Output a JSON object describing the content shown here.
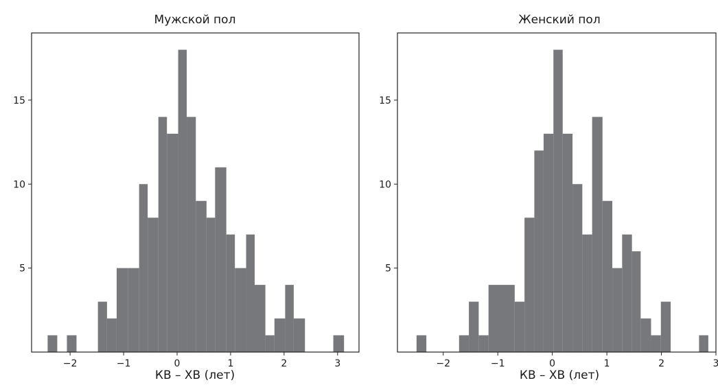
{
  "chart_data": [
    {
      "type": "histogram",
      "title": "Мужской пол",
      "xlabel": "КВ – ХВ (лет)",
      "ylabel": "",
      "xlim": [
        -2.72,
        3.4
      ],
      "ylim": [
        0,
        19
      ],
      "xticks": [
        -2,
        -1,
        0,
        1,
        2,
        3
      ],
      "xtick_labels": [
        "−2",
        "−1",
        "0",
        "1",
        "2",
        "3"
      ],
      "yticks": [
        5,
        10,
        15
      ],
      "ytick_labels": [
        "5",
        "10",
        "15"
      ],
      "color": "#77787b",
      "bins": [
        {
          "x0": -2.42,
          "x1": -2.24,
          "count": 1
        },
        {
          "x0": -2.06,
          "x1": -1.88,
          "count": 1
        },
        {
          "x0": -1.48,
          "x1": -1.31,
          "count": 3
        },
        {
          "x0": -1.31,
          "x1": -1.13,
          "count": 2
        },
        {
          "x0": -1.13,
          "x1": -0.92,
          "count": 5
        },
        {
          "x0": -0.92,
          "x1": -0.71,
          "count": 5
        },
        {
          "x0": -0.71,
          "x1": -0.55,
          "count": 10
        },
        {
          "x0": -0.55,
          "x1": -0.35,
          "count": 8
        },
        {
          "x0": -0.35,
          "x1": -0.19,
          "count": 14
        },
        {
          "x0": -0.19,
          "x1": 0.02,
          "count": 13
        },
        {
          "x0": 0.02,
          "x1": 0.18,
          "count": 18
        },
        {
          "x0": 0.18,
          "x1": 0.35,
          "count": 14
        },
        {
          "x0": 0.35,
          "x1": 0.55,
          "count": 9
        },
        {
          "x0": 0.55,
          "x1": 0.71,
          "count": 8
        },
        {
          "x0": 0.71,
          "x1": 0.92,
          "count": 11
        },
        {
          "x0": 0.92,
          "x1": 1.08,
          "count": 7
        },
        {
          "x0": 1.08,
          "x1": 1.29,
          "count": 5
        },
        {
          "x0": 1.29,
          "x1": 1.45,
          "count": 7
        },
        {
          "x0": 1.45,
          "x1": 1.65,
          "count": 4
        },
        {
          "x0": 1.65,
          "x1": 1.82,
          "count": 1
        },
        {
          "x0": 1.82,
          "x1": 2.02,
          "count": 2
        },
        {
          "x0": 2.02,
          "x1": 2.18,
          "count": 4
        },
        {
          "x0": 2.18,
          "x1": 2.39,
          "count": 2
        },
        {
          "x0": 2.92,
          "x1": 3.12,
          "count": 1
        }
      ]
    },
    {
      "type": "histogram",
      "title": "Женский пол",
      "xlabel": "КВ – ХВ (лет)",
      "ylabel": "",
      "xlim": [
        -2.84,
        3.0
      ],
      "ylim": [
        0,
        19
      ],
      "xticks": [
        -2,
        -1,
        0,
        1,
        2,
        3
      ],
      "xtick_labels": [
        "−2",
        "−1",
        "0",
        "1",
        "2",
        "3"
      ],
      "yticks": [
        5,
        10,
        15
      ],
      "ytick_labels": [
        "5",
        "10",
        "15"
      ],
      "color": "#77787b",
      "bins": [
        {
          "x0": -2.49,
          "x1": -2.31,
          "count": 1
        },
        {
          "x0": -1.71,
          "x1": -1.53,
          "count": 1
        },
        {
          "x0": -1.53,
          "x1": -1.35,
          "count": 3
        },
        {
          "x0": -1.35,
          "x1": -1.17,
          "count": 1
        },
        {
          "x0": -1.17,
          "x1": -0.69,
          "count": 4
        },
        {
          "x0": -0.69,
          "x1": -0.51,
          "count": 3
        },
        {
          "x0": -0.51,
          "x1": -0.33,
          "count": 8
        },
        {
          "x0": -0.33,
          "x1": -0.16,
          "count": 12
        },
        {
          "x0": -0.16,
          "x1": 0.02,
          "count": 13
        },
        {
          "x0": 0.02,
          "x1": 0.19,
          "count": 18
        },
        {
          "x0": 0.19,
          "x1": 0.37,
          "count": 13
        },
        {
          "x0": 0.37,
          "x1": 0.55,
          "count": 10
        },
        {
          "x0": 0.55,
          "x1": 0.73,
          "count": 7
        },
        {
          "x0": 0.73,
          "x1": 0.92,
          "count": 14
        },
        {
          "x0": 0.92,
          "x1": 1.1,
          "count": 9
        },
        {
          "x0": 1.1,
          "x1": 1.28,
          "count": 5
        },
        {
          "x0": 1.28,
          "x1": 1.46,
          "count": 7
        },
        {
          "x0": 1.46,
          "x1": 1.62,
          "count": 6
        },
        {
          "x0": 1.62,
          "x1": 1.81,
          "count": 2
        },
        {
          "x0": 1.81,
          "x1": 1.99,
          "count": 1
        },
        {
          "x0": 1.99,
          "x1": 2.17,
          "count": 3
        },
        {
          "x0": 2.69,
          "x1": 2.86,
          "count": 1
        }
      ]
    }
  ]
}
